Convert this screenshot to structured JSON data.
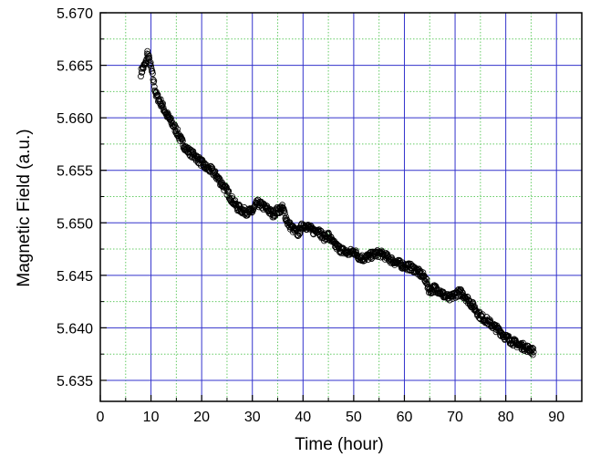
{
  "chart_data": {
    "type": "scatter",
    "title": "",
    "xlabel": "Time (hour)",
    "ylabel": "Magnetic Field (a.u.)",
    "xlim": [
      0,
      95
    ],
    "ylim": [
      5.633,
      5.67
    ],
    "x_ticks": [
      0,
      10,
      20,
      30,
      40,
      50,
      60,
      70,
      80,
      90
    ],
    "y_ticks": [
      5.635,
      5.64,
      5.645,
      5.65,
      5.655,
      5.66,
      5.665,
      5.67
    ],
    "x_tick_labels": [
      "0",
      "10",
      "20",
      "30",
      "40",
      "50",
      "60",
      "70",
      "80",
      "90"
    ],
    "y_tick_labels": [
      "5.635",
      "5.640",
      "5.645",
      "5.650",
      "5.655",
      "5.660",
      "5.665",
      "5.670"
    ],
    "grid": true,
    "major_grid_color": "#3333cc",
    "minor_grid_color": "#66cc66",
    "marker": "open-circle",
    "marker_color": "#000000",
    "series": [
      {
        "values_x": [
          8,
          8.5,
          9,
          9.3,
          9.6,
          10,
          11,
          12,
          13,
          14,
          15,
          16,
          17,
          18,
          19,
          20,
          21,
          22,
          23,
          24,
          25,
          26,
          27,
          28,
          29,
          30,
          31,
          32,
          33,
          34,
          35,
          36,
          37,
          38,
          39,
          40,
          41,
          42,
          43,
          44,
          45,
          46,
          47,
          48,
          49,
          50,
          51,
          52,
          53,
          54,
          55,
          56,
          57,
          58,
          59,
          60,
          61,
          62,
          63,
          64,
          65,
          66,
          67,
          68,
          69,
          70,
          71,
          72,
          73,
          74,
          75,
          76,
          77,
          78,
          79,
          80,
          81,
          82,
          83,
          84,
          85,
          85.5
        ],
        "values_y": [
          5.6643,
          5.6648,
          5.6652,
          5.6662,
          5.6656,
          5.6648,
          5.6622,
          5.6614,
          5.6604,
          5.6596,
          5.6588,
          5.6578,
          5.657,
          5.6566,
          5.6562,
          5.6557,
          5.6552,
          5.655,
          5.6544,
          5.6537,
          5.653,
          5.6522,
          5.6515,
          5.6512,
          5.651,
          5.6511,
          5.6519,
          5.6516,
          5.6513,
          5.6508,
          5.6512,
          5.6514,
          5.65,
          5.6494,
          5.649,
          5.6498,
          5.6496,
          5.6492,
          5.6494,
          5.6486,
          5.6488,
          5.648,
          5.6476,
          5.6473,
          5.6471,
          5.6473,
          5.6468,
          5.6466,
          5.6468,
          5.647,
          5.6471,
          5.6469,
          5.6466,
          5.6463,
          5.6461,
          5.6459,
          5.6458,
          5.6456,
          5.6452,
          5.6448,
          5.6435,
          5.6438,
          5.6435,
          5.643,
          5.6428,
          5.6432,
          5.6434,
          5.643,
          5.6424,
          5.6418,
          5.6411,
          5.6408,
          5.6404,
          5.64,
          5.6396,
          5.6391,
          5.6388,
          5.6385,
          5.6383,
          5.6381,
          5.6379,
          5.6377
        ]
      }
    ]
  }
}
